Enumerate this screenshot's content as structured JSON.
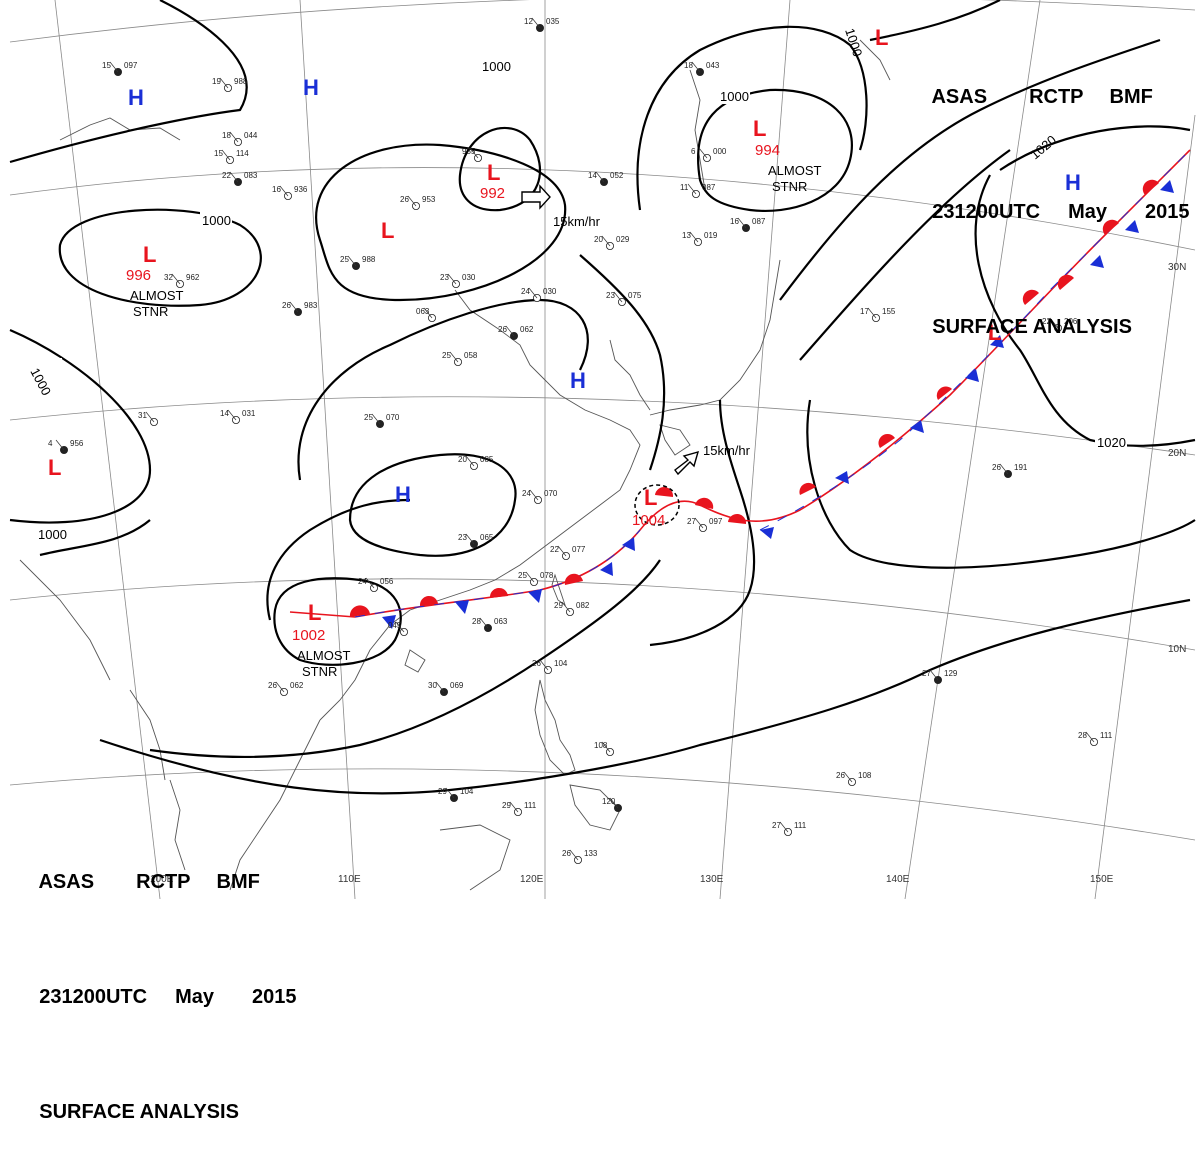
{
  "header_top": {
    "agency": "ASAS",
    "station": "RCTP",
    "office": "BMF",
    "time": "231200UTC",
    "month": "May",
    "year": "2015",
    "title": "SURFACE ANALYSIS"
  },
  "header_bottom": {
    "agency": "ASAS",
    "station": "RCTP",
    "office": "BMF",
    "time": "231200UTC",
    "month": "May",
    "year": "2015",
    "title": "SURFACE ANALYSIS"
  },
  "longitude_labels": [
    "100E",
    "110E",
    "120E",
    "130E",
    "140E",
    "150E"
  ],
  "latitude_labels": [
    "30N",
    "20N",
    "10N"
  ],
  "isobar_labels": [
    "1000",
    "1000",
    "1000",
    "1000",
    "1000",
    "1000",
    "1020",
    "1020"
  ],
  "systems": [
    {
      "type": "L",
      "pressure": "996",
      "note": [
        "ALMOST",
        "STNR"
      ]
    },
    {
      "type": "L",
      "pressure": "",
      "note": []
    },
    {
      "type": "L",
      "pressure": "992",
      "note": [
        "15km/hr"
      ]
    },
    {
      "type": "L",
      "pressure": "994",
      "note": [
        "ALMOST",
        "STNR"
      ]
    },
    {
      "type": "L",
      "pressure": "",
      "note": []
    },
    {
      "type": "L",
      "pressure": "",
      "note": []
    },
    {
      "type": "L",
      "pressure": "",
      "note": []
    },
    {
      "type": "L",
      "pressure": "1002",
      "note": [
        "ALMOST",
        "STNR"
      ]
    },
    {
      "type": "L",
      "pressure": "1004",
      "note": [
        "15km/hr"
      ]
    },
    {
      "type": "H",
      "pressure": "",
      "note": []
    },
    {
      "type": "H",
      "pressure": "",
      "note": []
    },
    {
      "type": "H",
      "pressure": "",
      "note": []
    },
    {
      "type": "H",
      "pressure": "",
      "note": []
    },
    {
      "type": "H",
      "pressure": "",
      "note": []
    }
  ],
  "station_plots": [
    {
      "t": "15",
      "p": "097"
    },
    {
      "t": "19",
      "p": "988"
    },
    {
      "t": "18",
      "p": "044"
    },
    {
      "t": "12",
      "p": "035"
    },
    {
      "t": "935",
      "p": ""
    },
    {
      "t": "16",
      "p": "936"
    },
    {
      "t": "22",
      "p": "083"
    },
    {
      "t": "15",
      "p": "114"
    },
    {
      "t": "26",
      "p": "953"
    },
    {
      "t": "25",
      "p": "988"
    },
    {
      "t": "23",
      "p": "030"
    },
    {
      "t": "32",
      "p": "962"
    },
    {
      "t": "26",
      "p": "983"
    },
    {
      "t": "24",
      "p": "030"
    },
    {
      "t": "23",
      "p": "075"
    },
    {
      "t": "26",
      "p": "062"
    },
    {
      "t": "25",
      "p": "058"
    },
    {
      "t": "063",
      "p": ""
    },
    {
      "t": "14",
      "p": "052"
    },
    {
      "t": "20",
      "p": "029"
    },
    {
      "t": "13",
      "p": "019"
    },
    {
      "t": "18",
      "p": "043"
    },
    {
      "t": "6",
      "p": "000"
    },
    {
      "t": "11",
      "p": "087"
    },
    {
      "t": "16",
      "p": "087"
    },
    {
      "t": "17",
      "p": "155"
    },
    {
      "t": "22",
      "p": "206"
    },
    {
      "t": "25",
      "p": "070"
    },
    {
      "t": "20",
      "p": "085"
    },
    {
      "t": "24",
      "p": "070"
    },
    {
      "t": "23",
      "p": "065"
    },
    {
      "t": "22",
      "p": "077"
    },
    {
      "t": "27",
      "p": "097"
    },
    {
      "t": "26",
      "p": "191"
    },
    {
      "t": "24",
      "p": "056"
    },
    {
      "t": "045",
      "p": ""
    },
    {
      "t": "28",
      "p": "063"
    },
    {
      "t": "29",
      "p": "082"
    },
    {
      "t": "25",
      "p": "078"
    },
    {
      "t": "30",
      "p": "069"
    },
    {
      "t": "26",
      "p": "062"
    },
    {
      "t": "26",
      "p": "104"
    },
    {
      "t": "27",
      "p": "129"
    },
    {
      "t": "28",
      "p": "111"
    },
    {
      "t": "26",
      "p": "108"
    },
    {
      "t": "29",
      "p": "104"
    },
    {
      "t": "29",
      "p": "111"
    },
    {
      "t": "108",
      "p": ""
    },
    {
      "t": "120",
      "p": ""
    },
    {
      "t": "27",
      "p": "111"
    },
    {
      "t": "26",
      "p": "133"
    },
    {
      "t": "4",
      "p": "956"
    },
    {
      "t": "14",
      "p": "031"
    },
    {
      "t": "31",
      "p": ""
    }
  ],
  "colors": {
    "warm_front": "#e8141e",
    "cold_front": "#1a2fd6",
    "isobar": "#000000",
    "grid": "#8a8a8a",
    "coastline": "#555555"
  }
}
